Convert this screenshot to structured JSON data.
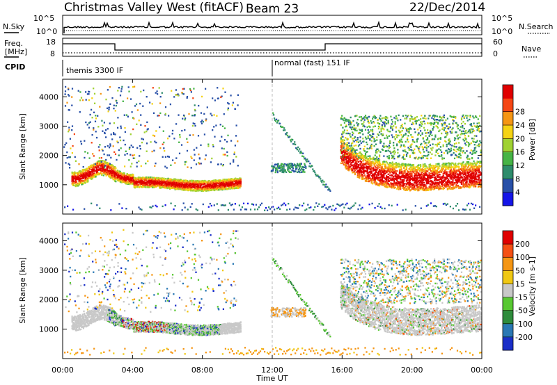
{
  "header": {
    "station": "Christmas Valley West (fitACF)",
    "beam": "Beam 23",
    "date": "22/Dec/2014"
  },
  "noise_panel": {
    "left_label": "N.Sky",
    "right_label": "N.Search",
    "left_ticks": [
      "10^5",
      "10^0"
    ],
    "right_ticks": [
      "10^5",
      "10^0"
    ]
  },
  "freq_panel": {
    "left_label_1": "Freq.",
    "left_label_2": "[MHz]",
    "right_label": "Nave",
    "left_ticks": [
      "18",
      "8"
    ],
    "right_ticks": [
      "60",
      "0"
    ]
  },
  "cpid": {
    "label": "CPID",
    "modes": [
      {
        "name": "themis 3300 IF",
        "start_ut": 0
      },
      {
        "name": "normal (fast) 151 IF",
        "start_ut": 12
      }
    ]
  },
  "chart_data": [
    {
      "type": "heatmap",
      "name": "power",
      "ylabel": "Slant Range [km]",
      "ylim": [
        0,
        4600
      ],
      "yticks": [
        1000,
        2000,
        3000,
        4000
      ],
      "xlim": [
        0,
        24
      ],
      "colorbar": {
        "label": "Power [dB]",
        "ticks": [
          4,
          8,
          12,
          16,
          20,
          24,
          28
        ],
        "colors": [
          "#1515e8",
          "#2850a8",
          "#2e8c6c",
          "#46b446",
          "#a0d232",
          "#f5d314",
          "#f59614",
          "#f54614",
          "#e00000"
        ]
      }
    },
    {
      "type": "heatmap",
      "name": "velocity",
      "ylabel": "Slant Range [km]",
      "ylim": [
        0,
        4600
      ],
      "yticks": [
        1000,
        2000,
        3000,
        4000
      ],
      "xlim": [
        0,
        24
      ],
      "colorbar": {
        "label": "Velocity [m s-1]",
        "ticks": [
          200,
          100,
          50,
          15,
          -15,
          -50,
          -100,
          -200
        ],
        "colors": [
          "#1a2ec8",
          "#2a78b4",
          "#2e8c3c",
          "#58c832",
          "#c8c8c8",
          "#f0c814",
          "#f59614",
          "#f55014",
          "#e00000"
        ]
      }
    }
  ],
  "x_axis": {
    "label": "Time UT",
    "ticks": [
      "00:00",
      "04:00",
      "08:00",
      "12:00",
      "16:00",
      "20:00",
      "00:00"
    ]
  },
  "colors": {
    "power": [
      "#1515e8",
      "#2850a8",
      "#2e8c6c",
      "#46b446",
      "#a0d232",
      "#f5d314",
      "#f59614",
      "#f54614",
      "#e00000"
    ],
    "velocity": [
      "#1a2ec8",
      "#2a78b4",
      "#2e8c3c",
      "#58c832",
      "#c8c8c8",
      "#f0c814",
      "#f59614",
      "#f55014",
      "#e00000"
    ]
  }
}
